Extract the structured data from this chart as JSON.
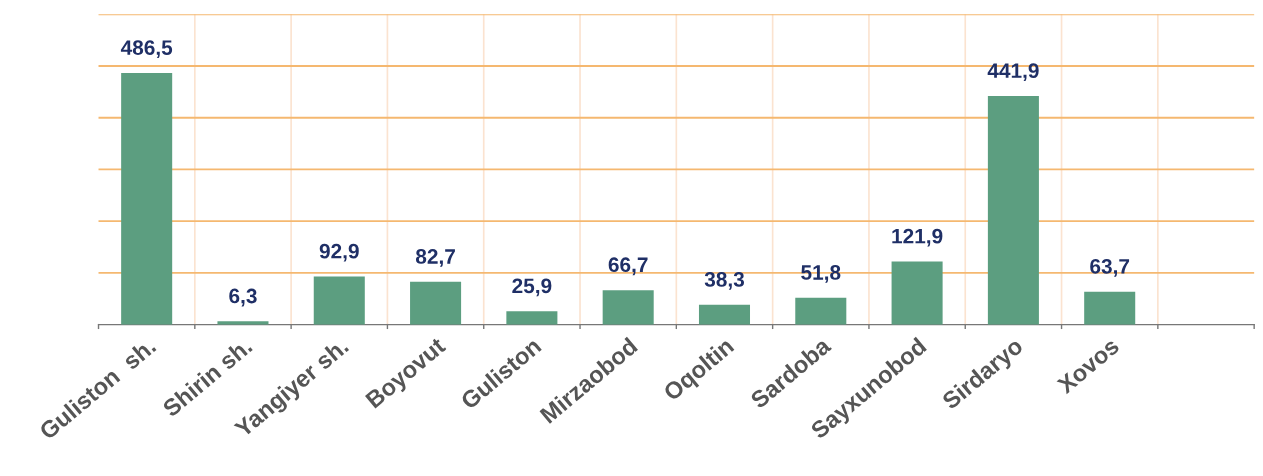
{
  "chart_data": {
    "type": "bar",
    "categories": [
      "Guliston  sh.",
      "Shirin sh.",
      "Yangiyer sh.",
      "Boyovut",
      "Guliston",
      "Mirzaobod",
      "Oqoltin",
      "Sardoba",
      "Sayxunobod",
      "Sirdaryo",
      "Xovos",
      null
    ],
    "values": [
      486.5,
      6.3,
      92.9,
      82.7,
      25.9,
      66.7,
      38.3,
      51.8,
      121.9,
      441.9,
      63.7,
      null
    ],
    "value_labels": [
      "486,5",
      "6,3",
      "92,9",
      "82,7",
      "25,9",
      "66,7",
      "38,3",
      "51,8",
      "121,9",
      "441,9",
      "63,7",
      null
    ],
    "color": "#5c9e80",
    "ylim": [
      0,
      600
    ],
    "yticks": [
      {
        "value": 100,
        "label": null
      },
      {
        "value": 200,
        "label": null
      },
      {
        "value": 300,
        "label": null
      },
      {
        "value": 400,
        "label": null
      },
      {
        "value": 500,
        "label": null
      },
      {
        "value": 600,
        "label": null
      }
    ],
    "grid": true,
    "tick_labels": "x"
  }
}
